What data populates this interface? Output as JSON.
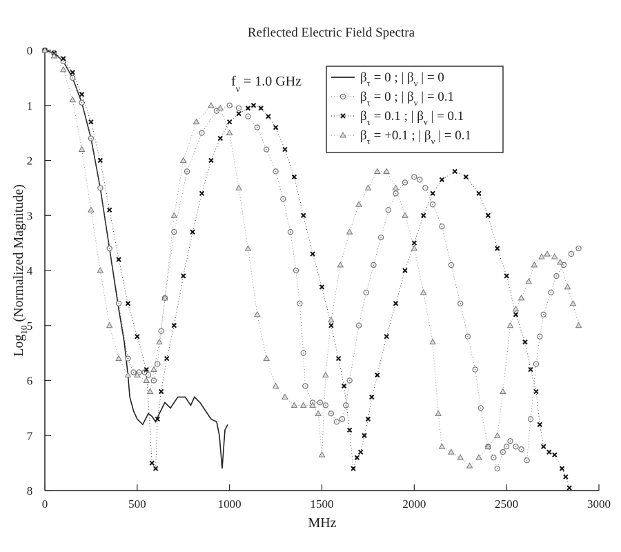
{
  "chart_data": {
    "type": "scatter",
    "title": "Reflected Electric Field Spectra",
    "xlabel": "MHz",
    "ylabel_main": "Log",
    "ylabel_sub": "10",
    "ylabel_rest": " (Normalized Magnitude)",
    "xlim": [
      0,
      3000
    ],
    "ylim": [
      0,
      8
    ],
    "y_inverted": true,
    "grid": false,
    "xticks": [
      0,
      500,
      1000,
      1500,
      2000,
      2500,
      3000
    ],
    "yticks": [
      0,
      1,
      2,
      3,
      4,
      5,
      6,
      7,
      8
    ],
    "annotation": {
      "main": "f",
      "sub": "ν",
      "rest": " = 1.0 GHz"
    },
    "legend_position": "top-right",
    "series": [
      {
        "name": "βτ = 0 ; |βν| = 0",
        "tau_value": "0",
        "nu_value": "0",
        "style": "solid",
        "marker": "none",
        "color": "#222222",
        "x": [
          0,
          50,
          100,
          150,
          200,
          250,
          300,
          350,
          400,
          430,
          450,
          460,
          480,
          500,
          530,
          560,
          580,
          600,
          620,
          650,
          680,
          720,
          760,
          790,
          810,
          840,
          870,
          900,
          930,
          945,
          960,
          975,
          990
        ],
        "y": [
          0,
          0.05,
          0.2,
          0.5,
          0.95,
          1.6,
          2.5,
          3.6,
          4.7,
          5.3,
          5.9,
          6.3,
          6.55,
          6.7,
          6.8,
          6.6,
          6.65,
          6.75,
          6.6,
          6.4,
          6.5,
          6.3,
          6.3,
          6.45,
          6.3,
          6.4,
          6.55,
          6.7,
          6.75,
          7.0,
          7.6,
          6.9,
          6.8
        ]
      },
      {
        "name": "βτ = 0 ; |βν| = 0.1",
        "tau_value": "0",
        "nu_value": "0.1",
        "style": "dotted",
        "marker": "circle",
        "color": "#666666",
        "x": [
          0,
          50,
          100,
          150,
          200,
          250,
          300,
          350,
          400,
          450,
          480,
          510,
          540,
          560,
          590,
          610,
          630,
          650,
          700,
          770,
          850,
          930,
          1000,
          1050,
          1100,
          1150,
          1200,
          1250,
          1290,
          1330,
          1360,
          1380,
          1400,
          1410,
          1450,
          1490,
          1520,
          1550,
          1580,
          1610,
          1630,
          1650,
          1700,
          1740,
          1780,
          1820,
          1860,
          1900,
          1950,
          2000,
          2030,
          2060,
          2100,
          2150,
          2200,
          2250,
          2290,
          2330,
          2360,
          2400,
          2430,
          2450,
          2480,
          2500,
          2520,
          2550,
          2580,
          2610,
          2630,
          2660,
          2680,
          2700,
          2740,
          2770,
          2810,
          2850,
          2890
        ],
        "y": [
          0,
          0.05,
          0.2,
          0.5,
          0.95,
          1.6,
          2.5,
          3.6,
          4.6,
          5.6,
          5.85,
          5.85,
          5.85,
          5.9,
          6.0,
          5.7,
          5.1,
          4.5,
          3.3,
          2.2,
          1.5,
          1.1,
          1.0,
          1.05,
          1.2,
          1.4,
          1.8,
          2.2,
          2.7,
          3.3,
          4.0,
          4.6,
          5.5,
          6.1,
          6.4,
          6.4,
          6.45,
          6.6,
          6.75,
          6.7,
          6.45,
          6.0,
          5.0,
          4.4,
          3.9,
          3.4,
          2.9,
          2.6,
          2.4,
          2.3,
          2.35,
          2.5,
          2.8,
          3.2,
          3.9,
          4.6,
          5.2,
          5.8,
          6.5,
          7.2,
          7.4,
          7.6,
          7.3,
          7.2,
          7.1,
          7.2,
          7.25,
          7.45,
          6.7,
          5.7,
          5.2,
          4.8,
          4.4,
          4.1,
          3.9,
          3.7,
          3.6
        ]
      },
      {
        "name": "βτ = 0.1 ; |βν| = 0.1",
        "tau_value": "0.1",
        "nu_value": "0.1",
        "style": "dotted",
        "marker": "cross",
        "color": "#111111",
        "x": [
          0,
          50,
          100,
          150,
          200,
          250,
          300,
          350,
          400,
          450,
          500,
          550,
          580,
          600,
          610,
          630,
          660,
          700,
          750,
          800,
          850,
          900,
          950,
          1000,
          1050,
          1100,
          1130,
          1170,
          1210,
          1250,
          1300,
          1350,
          1400,
          1450,
          1500,
          1550,
          1590,
          1620,
          1650,
          1670,
          1690,
          1710,
          1730,
          1750,
          1770,
          1800,
          1850,
          1900,
          1950,
          2000,
          2050,
          2100,
          2150,
          2220,
          2280,
          2350,
          2400,
          2450,
          2500,
          2550,
          2600,
          2630,
          2660,
          2680,
          2700,
          2730,
          2760,
          2800,
          2820,
          2840
        ],
        "y": [
          0,
          0.05,
          0.15,
          0.4,
          0.8,
          1.3,
          2.0,
          2.9,
          3.8,
          4.6,
          5.2,
          5.8,
          7.5,
          7.6,
          6.7,
          6.2,
          5.6,
          5.0,
          4.1,
          3.3,
          2.6,
          2.0,
          1.6,
          1.3,
          1.15,
          1.05,
          1.0,
          1.05,
          1.2,
          1.4,
          1.8,
          2.3,
          3.0,
          3.7,
          4.3,
          5.0,
          5.6,
          6.1,
          6.9,
          7.6,
          7.4,
          7.3,
          7.0,
          6.7,
          6.3,
          5.9,
          5.2,
          4.6,
          4.0,
          3.5,
          3.0,
          2.6,
          2.35,
          2.2,
          2.3,
          2.6,
          3.0,
          3.6,
          4.1,
          4.8,
          5.3,
          5.8,
          6.2,
          6.8,
          7.2,
          7.3,
          7.35,
          7.6,
          7.75,
          7.95
        ]
      },
      {
        "name": "βτ = +0.1 ; |βν| = 0.1",
        "tau_value": "+0.1",
        "nu_value": "0.1",
        "style": "dotted",
        "marker": "triangle",
        "color": "#777777",
        "x": [
          0,
          50,
          100,
          150,
          200,
          250,
          300,
          350,
          400,
          450,
          500,
          550,
          570,
          590,
          620,
          650,
          700,
          750,
          820,
          900,
          950,
          1000,
          1050,
          1100,
          1150,
          1200,
          1250,
          1300,
          1350,
          1400,
          1450,
          1480,
          1500,
          1520,
          1550,
          1600,
          1650,
          1700,
          1750,
          1800,
          1850,
          1900,
          1950,
          2000,
          2050,
          2100,
          2130,
          2150,
          2200,
          2250,
          2300,
          2350,
          2400,
          2450,
          2480,
          2520,
          2550,
          2580,
          2620,
          2650,
          2690,
          2720,
          2760,
          2790,
          2830,
          2860,
          2890
        ],
        "y": [
          0,
          0.1,
          0.35,
          0.9,
          1.8,
          2.9,
          4.0,
          5.0,
          5.6,
          5.9,
          5.9,
          6.0,
          6.2,
          5.8,
          5.3,
          4.5,
          3.0,
          2.0,
          1.3,
          1.0,
          1.05,
          1.5,
          2.5,
          3.6,
          4.8,
          5.6,
          6.1,
          6.3,
          6.45,
          6.45,
          6.45,
          6.6,
          7.35,
          5.9,
          4.9,
          3.9,
          3.3,
          2.8,
          2.5,
          2.2,
          2.2,
          2.5,
          3.0,
          3.6,
          4.4,
          5.3,
          6.6,
          7.2,
          7.3,
          7.4,
          7.55,
          7.4,
          7.2,
          7.0,
          6.2,
          5.0,
          4.7,
          4.5,
          4.2,
          3.9,
          3.75,
          3.7,
          3.75,
          3.85,
          4.3,
          4.6,
          5.0
        ]
      }
    ]
  }
}
